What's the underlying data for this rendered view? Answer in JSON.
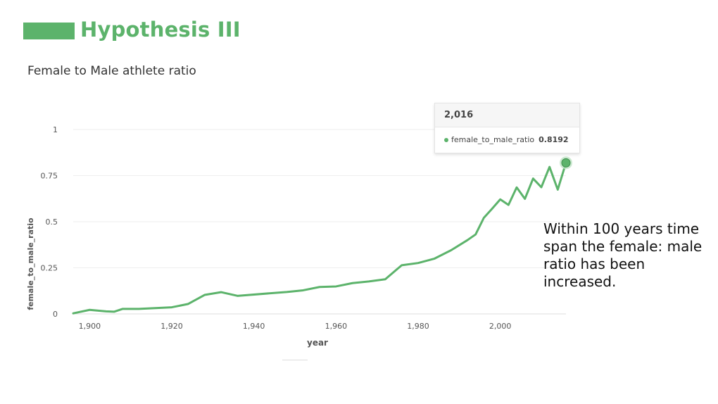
{
  "slide": {
    "title": "Hypothesis III",
    "annotation": "Within 100 years time span the female: male ratio has been increased."
  },
  "colors": {
    "accent": "#5cb36b",
    "grid": "#eeeeee",
    "axis_text": "#555555"
  },
  "tooltip": {
    "year": "2,016",
    "series": "female_to_male_ratio",
    "value": "0.8192"
  },
  "chart_data": {
    "type": "line",
    "title": "Female to Male athlete ratio",
    "xlabel": "year",
    "ylabel": "female_to_male_ratio",
    "xlim": [
      1896,
      2016
    ],
    "ylim": [
      0,
      1
    ],
    "x_ticks": [
      1900,
      1920,
      1940,
      1960,
      1980,
      2000
    ],
    "x_tick_labels": [
      "1,900",
      "1,920",
      "1,940",
      "1,960",
      "1,980",
      "2,000"
    ],
    "y_ticks": [
      0,
      0.25,
      0.5,
      0.75,
      1
    ],
    "y_tick_labels": [
      "0",
      "0.25",
      "0.5",
      "0.75",
      "1"
    ],
    "grid": true,
    "series": [
      {
        "name": "female_to_male_ratio",
        "x": [
          1896,
          1900,
          1904,
          1906,
          1908,
          1912,
          1920,
          1924,
          1928,
          1932,
          1936,
          1948,
          1952,
          1956,
          1960,
          1964,
          1968,
          1972,
          1976,
          1980,
          1984,
          1988,
          1992,
          1994,
          1996,
          1998,
          2000,
          2002,
          2004,
          2006,
          2008,
          2010,
          2012,
          2014,
          2016
        ],
        "y": [
          0.003,
          0.022,
          0.014,
          0.012,
          0.027,
          0.027,
          0.036,
          0.054,
          0.103,
          0.118,
          0.098,
          0.119,
          0.128,
          0.146,
          0.149,
          0.167,
          0.176,
          0.188,
          0.264,
          0.276,
          0.3,
          0.345,
          0.4,
          0.431,
          0.521,
          0.57,
          0.621,
          0.591,
          0.686,
          0.624,
          0.734,
          0.687,
          0.797,
          0.674,
          0.8192
        ]
      }
    ],
    "highlight": {
      "x": 2016,
      "y": 0.8192
    }
  }
}
